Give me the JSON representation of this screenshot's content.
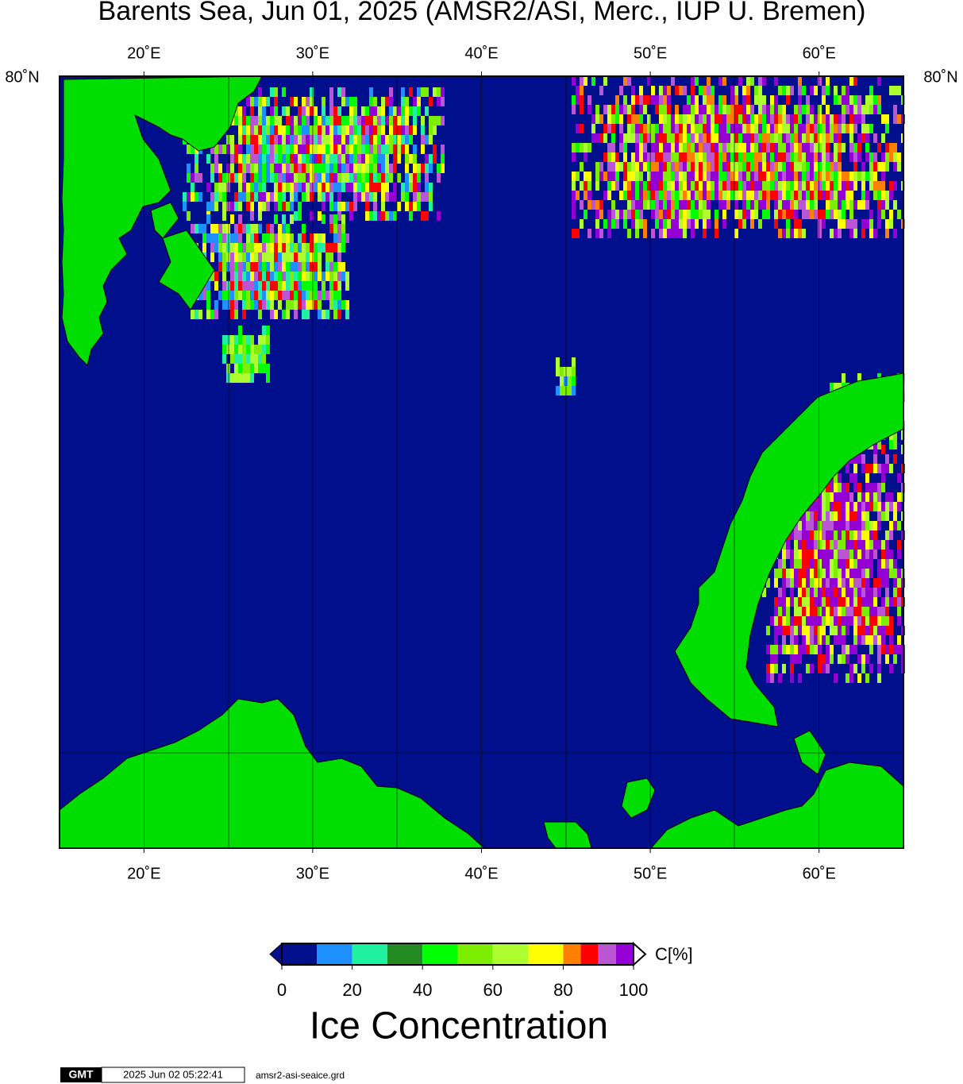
{
  "title": "Barents Sea, Jun 01, 2025 (AMSR2/ASI, Merc., IUP U. Bremen)",
  "map": {
    "lon_range": [
      15,
      65
    ],
    "lon_ticks": [
      {
        "value": 20,
        "label": "20˚E"
      },
      {
        "value": 30,
        "label": "30˚E"
      },
      {
        "value": 40,
        "label": "40˚E"
      },
      {
        "value": 50,
        "label": "50˚E"
      },
      {
        "value": 60,
        "label": "60˚E"
      }
    ],
    "lat_label": "80˚N"
  },
  "colorbar": {
    "bounds": [
      0,
      10,
      20,
      30,
      40,
      50,
      60,
      70,
      80,
      85,
      90,
      95,
      100
    ],
    "colors": [
      "#000f8c",
      "#1e90ff",
      "#20f0a0",
      "#228b22",
      "#00ff00",
      "#7cee00",
      "#adff2f",
      "#ffff00",
      "#ff8000",
      "#ff0000",
      "#ba55d3",
      "#9400d3"
    ],
    "ticks": [
      0,
      20,
      40,
      60,
      80,
      100
    ],
    "unit": "C[%]",
    "title": "Ice Concentration"
  },
  "footer": {
    "logo": "GMT",
    "timestamp": "2025 Jun 02 05:22:41",
    "file": "amsr2-asi-seaice.grd"
  }
}
